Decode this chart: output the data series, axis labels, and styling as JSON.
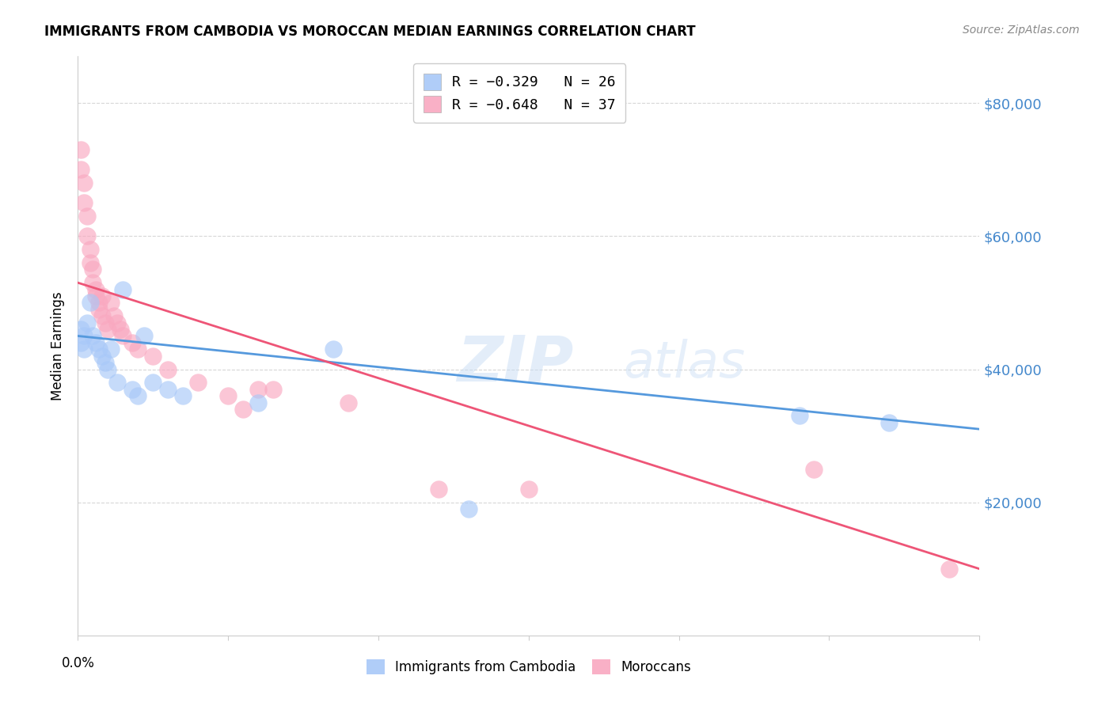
{
  "title": "IMMIGRANTS FROM CAMBODIA VS MOROCCAN MEDIAN EARNINGS CORRELATION CHART",
  "source": "Source: ZipAtlas.com",
  "ylabel": "Median Earnings",
  "y_ticks": [
    20000,
    40000,
    60000,
    80000
  ],
  "y_tick_labels": [
    "$20,000",
    "$40,000",
    "$60,000",
    "$80,000"
  ],
  "cambodia_color": "#a8c8f8",
  "morocco_color": "#f9a8c0",
  "cambodia_line_color": "#5599dd",
  "morocco_line_color": "#ee5577",
  "legend_cambodia": "R = −0.329   N = 26",
  "legend_morocco": "R = −0.648   N = 37",
  "legend_label_cambodia": "Immigrants from Cambodia",
  "legend_label_morocco": "Moroccans",
  "cambodia_x": [
    0.001,
    0.001,
    0.002,
    0.002,
    0.003,
    0.004,
    0.005,
    0.006,
    0.007,
    0.008,
    0.009,
    0.01,
    0.011,
    0.013,
    0.015,
    0.018,
    0.02,
    0.022,
    0.025,
    0.03,
    0.035,
    0.06,
    0.085,
    0.13,
    0.24,
    0.27
  ],
  "cambodia_y": [
    46000,
    44000,
    45000,
    43000,
    47000,
    50000,
    45000,
    44000,
    43000,
    42000,
    41000,
    40000,
    43000,
    38000,
    52000,
    37000,
    36000,
    45000,
    38000,
    37000,
    36000,
    35000,
    43000,
    19000,
    33000,
    32000
  ],
  "morocco_x": [
    0.001,
    0.001,
    0.002,
    0.002,
    0.003,
    0.003,
    0.004,
    0.004,
    0.005,
    0.005,
    0.006,
    0.006,
    0.007,
    0.007,
    0.008,
    0.008,
    0.009,
    0.01,
    0.011,
    0.012,
    0.013,
    0.014,
    0.015,
    0.018,
    0.02,
    0.025,
    0.03,
    0.04,
    0.05,
    0.055,
    0.06,
    0.065,
    0.09,
    0.12,
    0.15,
    0.245,
    0.29
  ],
  "morocco_y": [
    73000,
    70000,
    68000,
    65000,
    63000,
    60000,
    58000,
    56000,
    55000,
    53000,
    52000,
    51000,
    50000,
    49000,
    48000,
    51000,
    47000,
    46000,
    50000,
    48000,
    47000,
    46000,
    45000,
    44000,
    43000,
    42000,
    40000,
    38000,
    36000,
    34000,
    37000,
    37000,
    35000,
    22000,
    22000,
    25000,
    10000
  ],
  "xlim": [
    0.0,
    0.3
  ],
  "ylim": [
    0,
    87000
  ],
  "cam_line_x0": 0.0,
  "cam_line_y0": 45000,
  "cam_line_x1": 0.3,
  "cam_line_y1": 31000,
  "mor_line_x0": 0.0,
  "mor_line_y0": 53000,
  "mor_line_x1": 0.3,
  "mor_line_y1": 10000
}
